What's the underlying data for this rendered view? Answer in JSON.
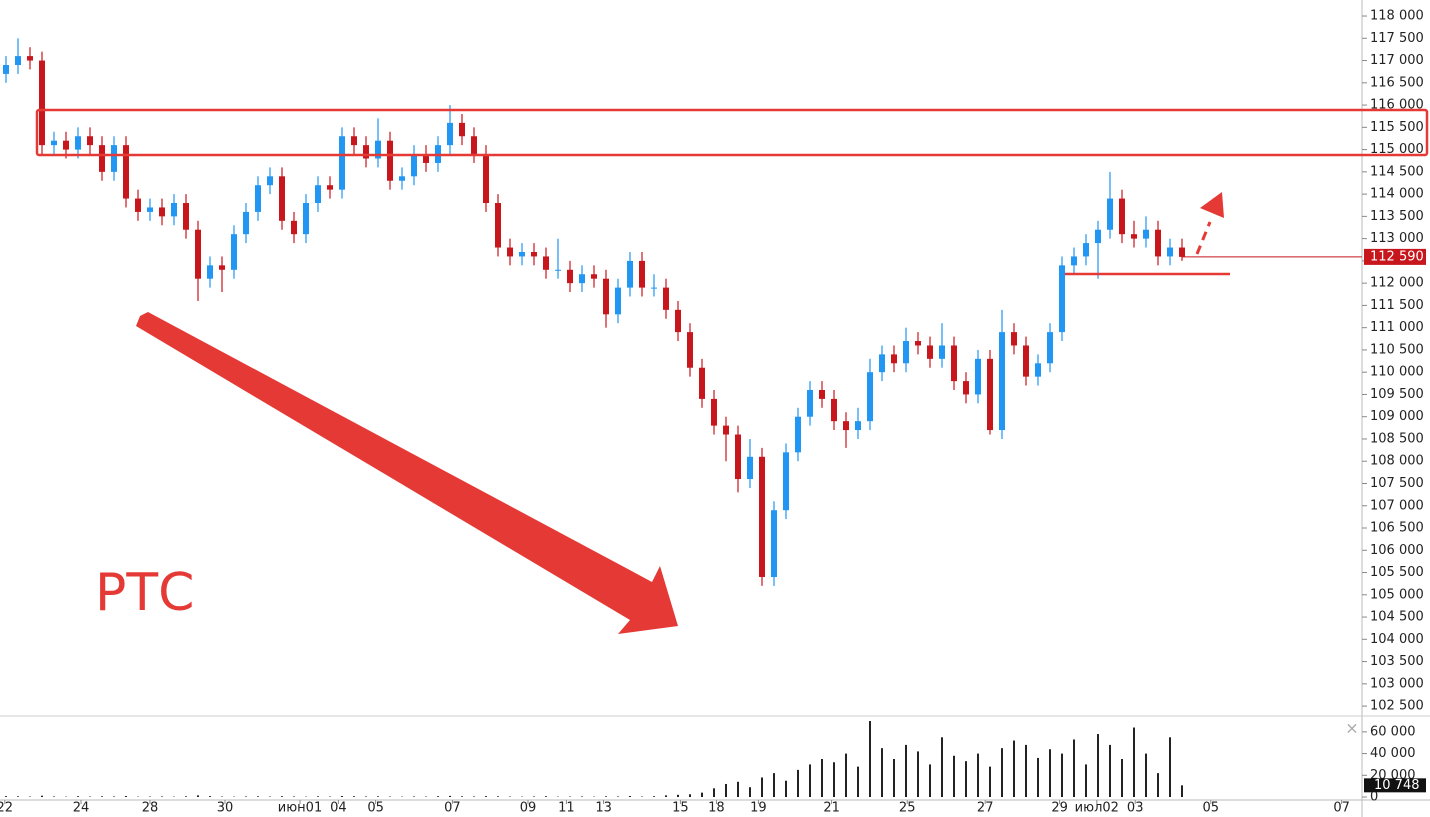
{
  "chart_data": {
    "type": "candlestick",
    "annotation": "РТС",
    "up_color": "#2196f3",
    "down_color": "#c8161d",
    "ylim": [
      102300,
      118360
    ],
    "xlim": [
      0,
      113.5
    ],
    "yticks": [
      {
        "value": 102500,
        "label": "102 500"
      },
      {
        "value": 103000,
        "label": "103 000"
      },
      {
        "value": 103500,
        "label": "103 500"
      },
      {
        "value": 104000,
        "label": "104 000"
      },
      {
        "value": 104500,
        "label": "104 500"
      },
      {
        "value": 105000,
        "label": "105 000"
      },
      {
        "value": 105500,
        "label": "105 500"
      },
      {
        "value": 106000,
        "label": "106 000"
      },
      {
        "value": 106500,
        "label": "106 500"
      },
      {
        "value": 107000,
        "label": "107 000"
      },
      {
        "value": 107500,
        "label": "107 500"
      },
      {
        "value": 108000,
        "label": "108 000"
      },
      {
        "value": 108500,
        "label": "108 500"
      },
      {
        "value": 109000,
        "label": "109 000"
      },
      {
        "value": 109500,
        "label": "109 500"
      },
      {
        "value": 110000,
        "label": "110 000"
      },
      {
        "value": 110500,
        "label": "110 500"
      },
      {
        "value": 111000,
        "label": "111 000"
      },
      {
        "value": 111500,
        "label": "111 500"
      },
      {
        "value": 112000,
        "label": "112 000"
      },
      {
        "value": 112500,
        "label": "112 500"
      },
      {
        "value": 113000,
        "label": "113 000"
      },
      {
        "value": 113500,
        "label": "113 500"
      },
      {
        "value": 114000,
        "label": "114 000"
      },
      {
        "value": 114500,
        "label": "114 500"
      },
      {
        "value": 115000,
        "label": "115 000"
      },
      {
        "value": 115500,
        "label": "115 500"
      },
      {
        "value": 116000,
        "label": "116 000"
      },
      {
        "value": 116500,
        "label": "116 500"
      },
      {
        "value": 117000,
        "label": "117 000"
      },
      {
        "value": 117500,
        "label": "117 500"
      },
      {
        "value": 118000,
        "label": "118 000"
      }
    ],
    "xticks": [
      {
        "value": 0.4,
        "label": "22"
      },
      {
        "value": 6.75,
        "label": "24"
      },
      {
        "value": 12.5,
        "label": "28"
      },
      {
        "value": 18.75,
        "label": "30"
      },
      {
        "value": 25,
        "label": "июн01"
      },
      {
        "value": 28.2,
        "label": "04"
      },
      {
        "value": 31.3,
        "label": "05"
      },
      {
        "value": 37.7,
        "label": "07"
      },
      {
        "value": 44,
        "label": "09"
      },
      {
        "value": 47.2,
        "label": "11"
      },
      {
        "value": 50.3,
        "label": "13"
      },
      {
        "value": 56.7,
        "label": "15"
      },
      {
        "value": 59.7,
        "label": "18"
      },
      {
        "value": 63.2,
        "label": "19"
      },
      {
        "value": 69.3,
        "label": "21"
      },
      {
        "value": 75.6,
        "label": "25"
      },
      {
        "value": 82.1,
        "label": "27"
      },
      {
        "value": 88.3,
        "label": "29"
      },
      {
        "value": 91.4,
        "label": "июл02"
      },
      {
        "value": 94.6,
        "label": "03"
      },
      {
        "value": 100.9,
        "label": "05"
      },
      {
        "value": 111.8,
        "label": "07"
      }
    ],
    "last_price": {
      "value": 112590,
      "label": "112 590"
    },
    "open": [
      116700,
      116900,
      117100,
      117000,
      115100,
      115200,
      115000,
      115300,
      115100,
      114500,
      115100,
      113900,
      113600,
      113700,
      113500,
      113800,
      113200,
      112100,
      112400,
      112300,
      113100,
      113600,
      114200,
      114400,
      113400,
      113100,
      113800,
      114200,
      114100,
      115300,
      115100,
      114800,
      115200,
      114300,
      114400,
      114900,
      114700,
      115100,
      115600,
      115300,
      114900,
      113800,
      112800,
      112600,
      112700,
      112600,
      112300,
      112300,
      112000,
      112200,
      112100,
      111300,
      111900,
      112500,
      111900,
      111900,
      111400,
      110900,
      110100,
      109400,
      108800,
      108600,
      107600,
      108100,
      105400,
      106900,
      108200,
      109000,
      109600,
      109400,
      108900,
      108700,
      108900,
      110000,
      110400,
      110200,
      110700,
      110600,
      110300,
      110600,
      109800,
      109500,
      110300,
      108700,
      110900,
      110600,
      109900,
      110200,
      110900,
      112400,
      112600,
      112900,
      113200,
      113900,
      113100,
      113000,
      113200,
      112600,
      112800
    ],
    "high": [
      117100,
      117500,
      117300,
      117200,
      115400,
      115400,
      115500,
      115500,
      115300,
      115300,
      115300,
      114100,
      113900,
      113900,
      114000,
      114000,
      113400,
      112600,
      112600,
      113300,
      113800,
      114400,
      114600,
      114600,
      113600,
      114000,
      114400,
      114400,
      115500,
      115500,
      115300,
      115700,
      115400,
      114600,
      115100,
      115100,
      115300,
      116000,
      115800,
      115500,
      115100,
      114000,
      113000,
      112900,
      112900,
      112800,
      113000,
      112500,
      112400,
      112400,
      112300,
      112100,
      112700,
      112700,
      112200,
      112100,
      111600,
      111100,
      110300,
      109600,
      109000,
      108800,
      108500,
      108300,
      107100,
      108400,
      109200,
      109800,
      109800,
      109600,
      109100,
      109200,
      110300,
      110600,
      110600,
      111000,
      110900,
      110800,
      111100,
      110800,
      110000,
      110500,
      110500,
      111400,
      111100,
      110800,
      110400,
      111100,
      112600,
      112800,
      113100,
      113400,
      114500,
      114100,
      113400,
      113500,
      113400,
      113000,
      113000
    ],
    "low": [
      116500,
      116700,
      116800,
      114900,
      114900,
      114800,
      114800,
      114900,
      114300,
      114300,
      113700,
      113400,
      113400,
      113300,
      113300,
      113000,
      111600,
      111900,
      111800,
      112100,
      112900,
      113400,
      114000,
      113200,
      112900,
      112900,
      113600,
      113900,
      113900,
      114900,
      114600,
      114600,
      114100,
      114100,
      114200,
      114500,
      114500,
      114900,
      115100,
      114700,
      113600,
      112600,
      112400,
      112400,
      112400,
      112100,
      112100,
      111800,
      111800,
      111900,
      111000,
      111100,
      111700,
      111700,
      111700,
      111200,
      110700,
      109900,
      109200,
      108600,
      108000,
      107300,
      107400,
      105200,
      105200,
      106700,
      108000,
      108800,
      109200,
      108700,
      108300,
      108500,
      108700,
      109800,
      110000,
      110000,
      110400,
      110100,
      110100,
      109600,
      109300,
      109300,
      108600,
      108500,
      110400,
      109700,
      109700,
      110000,
      110700,
      112200,
      112400,
      112100,
      113000,
      112900,
      112800,
      112800,
      112400,
      112400,
      112500
    ],
    "close": [
      116900,
      117100,
      117000,
      115100,
      115200,
      115000,
      115300,
      115100,
      114500,
      115100,
      113900,
      113600,
      113700,
      113500,
      113800,
      113200,
      112100,
      112400,
      112300,
      113100,
      113600,
      114200,
      114400,
      113400,
      113100,
      113800,
      114200,
      114100,
      115300,
      115100,
      114800,
      115200,
      114300,
      114400,
      114900,
      114700,
      115100,
      115600,
      115300,
      114900,
      113800,
      112800,
      112600,
      112700,
      112600,
      112300,
      112300,
      112000,
      112200,
      112100,
      111300,
      111900,
      112500,
      111900,
      111900,
      111400,
      110900,
      110100,
      109400,
      108800,
      108600,
      107600,
      108100,
      105400,
      106900,
      108200,
      109000,
      109600,
      109400,
      108900,
      108700,
      108900,
      110000,
      110400,
      110200,
      110700,
      110600,
      110300,
      110600,
      109800,
      109500,
      110300,
      108700,
      110900,
      110600,
      109900,
      110200,
      110900,
      112400,
      112600,
      112900,
      113200,
      113900,
      113100,
      113000,
      113200,
      112600,
      112800,
      112590
    ],
    "volume": {
      "color": "#222222",
      "ylim": [
        0,
        73700
      ],
      "yticks": [
        0,
        {
          "value": 20000,
          "label": "20 000"
        },
        {
          "value": 40000,
          "label": "40 000"
        },
        {
          "value": 60000,
          "label": "60 000"
        }
      ],
      "last": {
        "value": 10748,
        "label": "10 748"
      },
      "values": [
        800,
        600,
        400,
        1200,
        500,
        300,
        700,
        400,
        600,
        500,
        900,
        300,
        400,
        500,
        300,
        600,
        1500,
        800,
        400,
        300,
        500,
        600,
        400,
        700,
        500,
        300,
        600,
        400,
        900,
        700,
        500,
        600,
        400,
        300,
        500,
        400,
        700,
        1000,
        600,
        500,
        800,
        600,
        400,
        300,
        500,
        700,
        300,
        400,
        500,
        300,
        600,
        500,
        900,
        400,
        700,
        1500,
        2000,
        2500,
        4000,
        8000,
        12000,
        14000,
        9000,
        18000,
        22000,
        15000,
        25000,
        30000,
        35000,
        32000,
        40000,
        28000,
        70000,
        45000,
        35000,
        48000,
        42000,
        30000,
        55000,
        38000,
        33000,
        40000,
        28000,
        45000,
        52000,
        48000,
        36000,
        44000,
        40000,
        53000,
        30000,
        58000,
        48000,
        35000,
        64000,
        40000,
        22000,
        55000,
        10748
      ]
    }
  }
}
